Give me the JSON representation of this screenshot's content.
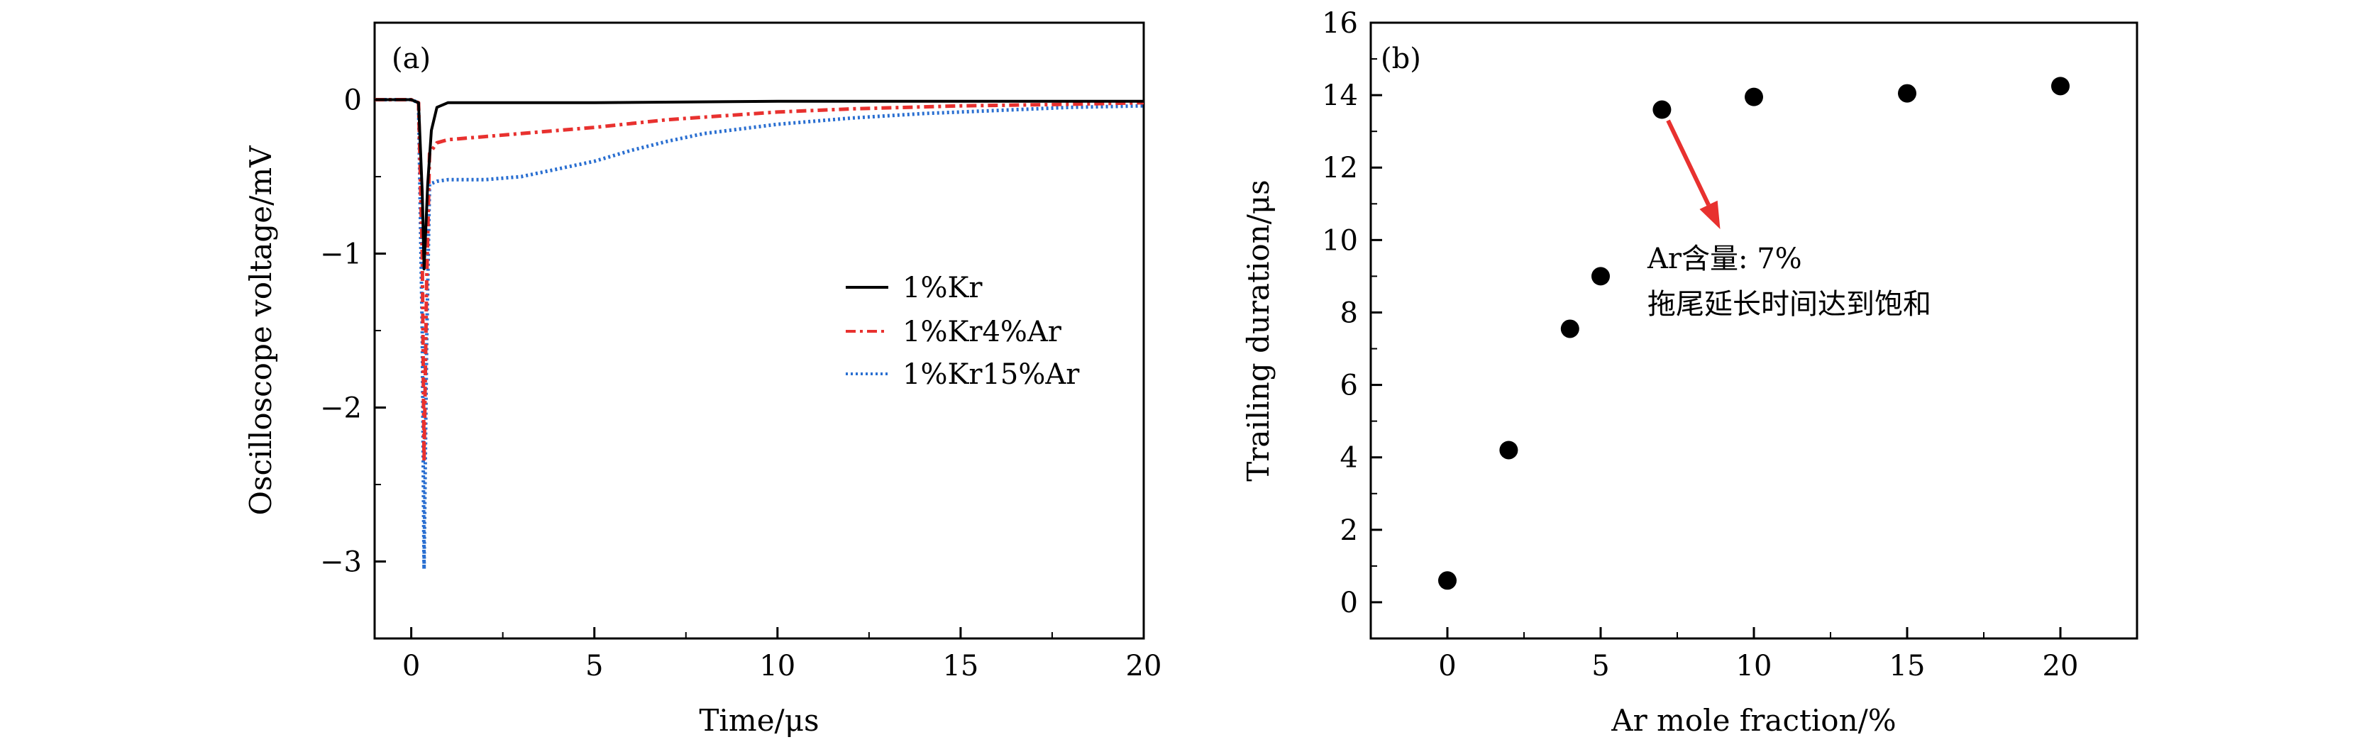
{
  "chart_data": [
    {
      "panel_label": "(a)",
      "type": "line",
      "title": "",
      "xlabel": "Time/μs",
      "ylabel": "Oscilloscope voltage/mV",
      "xlim": [
        -1,
        20
      ],
      "ylim": [
        -3.5,
        0.5
      ],
      "xticks": [
        0,
        5,
        10,
        15,
        20
      ],
      "xtick_labels": [
        "0",
        "5",
        "10",
        "15",
        "20"
      ],
      "yticks": [
        0,
        -1,
        -2,
        -3
      ],
      "ytick_labels": [
        "0",
        "−1",
        "−2",
        "−3"
      ],
      "grid": false,
      "legend_position": "right-middle",
      "series": [
        {
          "name": "1%Kr",
          "color": "#000000",
          "dash": "solid",
          "x": [
            -1,
            0,
            0.2,
            0.3,
            0.35,
            0.45,
            0.55,
            0.7,
            1.0,
            1.5,
            3,
            5,
            10,
            15,
            20
          ],
          "y": [
            0,
            0,
            -0.02,
            -0.6,
            -1.1,
            -0.55,
            -0.2,
            -0.05,
            -0.02,
            -0.02,
            -0.02,
            -0.02,
            -0.01,
            -0.01,
            -0.01
          ]
        },
        {
          "name": "1%Kr4%Ar",
          "color": "#e8312f",
          "dash": "dashdot",
          "x": [
            -1,
            0,
            0.2,
            0.3,
            0.35,
            0.42,
            0.5,
            0.7,
            1,
            2,
            3,
            5,
            7,
            10,
            12,
            15,
            18,
            20
          ],
          "y": [
            0,
            0,
            -0.02,
            -1.0,
            -2.35,
            -1.2,
            -0.35,
            -0.28,
            -0.26,
            -0.24,
            -0.22,
            -0.18,
            -0.13,
            -0.08,
            -0.06,
            -0.04,
            -0.03,
            -0.02
          ]
        },
        {
          "name": "1%Kr15%Ar",
          "color": "#2a6fd1",
          "dash": "dotted",
          "x": [
            -1,
            0,
            0.2,
            0.3,
            0.35,
            0.42,
            0.5,
            0.7,
            1,
            2,
            3,
            4,
            5,
            6,
            7,
            8,
            10,
            12,
            14,
            16,
            18,
            20
          ],
          "y": [
            0,
            0,
            -0.02,
            -1.5,
            -3.05,
            -1.6,
            -0.55,
            -0.53,
            -0.52,
            -0.52,
            -0.5,
            -0.45,
            -0.4,
            -0.33,
            -0.27,
            -0.22,
            -0.16,
            -0.12,
            -0.09,
            -0.07,
            -0.05,
            -0.04
          ]
        }
      ]
    },
    {
      "panel_label": "(b)",
      "type": "scatter",
      "title": "",
      "xlabel": "Ar mole fraction/%",
      "ylabel": "Trailing duration/μs",
      "xlim": [
        -2.5,
        22.5
      ],
      "ylim": [
        -1,
        16
      ],
      "xticks": [
        0,
        5,
        10,
        15,
        20
      ],
      "xtick_labels": [
        "0",
        "5",
        "10",
        "15",
        "20"
      ],
      "yticks": [
        0,
        2,
        4,
        6,
        8,
        10,
        12,
        14,
        16
      ],
      "ytick_labels": [
        "0",
        "2",
        "4",
        "6",
        "8",
        "10",
        "12",
        "14",
        "16"
      ],
      "grid": false,
      "series": [
        {
          "color": "#000000",
          "x": [
            0,
            2,
            4,
            5,
            7,
            10,
            15,
            20
          ],
          "y": [
            0.6,
            4.2,
            7.55,
            9.0,
            13.6,
            13.95,
            14.05,
            14.25
          ]
        }
      ],
      "annotation": {
        "line1": "Ar含量: 7%",
        "line2": "拖尾延长时间达到饱和",
        "arrow_color": "#e8312f",
        "arrow_from": [
          7.2,
          13.3
        ],
        "arrow_to": [
          8.9,
          10.3
        ]
      }
    }
  ]
}
